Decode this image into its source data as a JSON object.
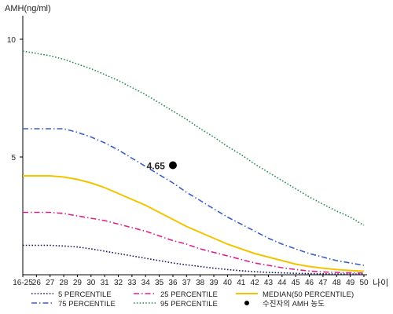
{
  "chart_data": {
    "type": "line",
    "ylabel": "AMH(ng/ml)",
    "xlabel": "나이",
    "x_ticks": [
      "16-25",
      "26",
      "27",
      "28",
      "29",
      "30",
      "31",
      "32",
      "33",
      "34",
      "35",
      "36",
      "37",
      "38",
      "39",
      "40",
      "41",
      "42",
      "43",
      "44",
      "45",
      "46",
      "47",
      "48",
      "49",
      "50"
    ],
    "y_ticks": [
      5,
      10
    ],
    "ylim": [
      0,
      11
    ],
    "grid": false,
    "series": [
      {
        "name": "95 PERCENTILE",
        "color": "#2e8b57",
        "style": "dotted",
        "values": [
          9.5,
          9.4,
          9.3,
          9.15,
          8.95,
          8.75,
          8.5,
          8.25,
          7.95,
          7.65,
          7.3,
          6.95,
          6.6,
          6.2,
          5.85,
          5.45,
          5.1,
          4.7,
          4.35,
          4.0,
          3.65,
          3.3,
          3.0,
          2.7,
          2.45,
          2.1
        ]
      },
      {
        "name": "75 PERCENTILE",
        "color": "#3a5fcd",
        "style": "dashdot",
        "values": [
          6.2,
          6.2,
          6.2,
          6.2,
          6.05,
          5.85,
          5.6,
          5.3,
          4.95,
          4.6,
          4.25,
          3.9,
          3.5,
          3.15,
          2.8,
          2.45,
          2.15,
          1.85,
          1.55,
          1.3,
          1.1,
          0.9,
          0.75,
          0.6,
          0.5,
          0.4
        ]
      },
      {
        "name": "MEDIAN(50 PERCENTILE)",
        "color": "#f2c400",
        "style": "solid",
        "values": [
          4.2,
          4.2,
          4.2,
          4.15,
          4.05,
          3.9,
          3.7,
          3.45,
          3.2,
          2.95,
          2.65,
          2.35,
          2.05,
          1.8,
          1.55,
          1.3,
          1.1,
          0.9,
          0.75,
          0.6,
          0.45,
          0.35,
          0.28,
          0.22,
          0.18,
          0.15
        ]
      },
      {
        "name": "25 PERCENTILE",
        "color": "#e0218a",
        "style": "dashdot",
        "values": [
          2.65,
          2.65,
          2.65,
          2.6,
          2.5,
          2.4,
          2.3,
          2.15,
          2.0,
          1.85,
          1.65,
          1.45,
          1.3,
          1.1,
          0.95,
          0.8,
          0.65,
          0.5,
          0.4,
          0.3,
          0.22,
          0.16,
          0.12,
          0.1,
          0.08,
          0.07
        ]
      },
      {
        "name": "5 PERCENTILE",
        "color": "#1a1a60",
        "style": "dotted",
        "values": [
          1.25,
          1.25,
          1.25,
          1.22,
          1.18,
          1.1,
          1.0,
          0.9,
          0.8,
          0.7,
          0.6,
          0.5,
          0.42,
          0.35,
          0.28,
          0.22,
          0.17,
          0.13,
          0.1,
          0.08,
          0.06,
          0.05,
          0.04,
          0.03,
          0.03,
          0.02
        ]
      }
    ],
    "annotation": {
      "label": "4.65",
      "x": "36",
      "y": 4.65,
      "legend_label": "수진자의 AMH 농도",
      "color": "#000000"
    },
    "legend": {
      "placement": "bottom",
      "entries": [
        {
          "label": "5 PERCENTILE",
          "color": "#1a1a60",
          "style": "dotted"
        },
        {
          "label": "25 PERCENTILE",
          "color": "#e0218a",
          "style": "dashdot"
        },
        {
          "label": "MEDIAN(50 PERCENTILE)",
          "color": "#f2c400",
          "style": "solid"
        },
        {
          "label": "75 PERCENTILE",
          "color": "#3a5fcd",
          "style": "dashdot"
        },
        {
          "label": "95 PERCENTILE",
          "color": "#2e8b57",
          "style": "dotted"
        },
        {
          "label": "수진자의 AMH 농도",
          "color": "#000000",
          "style": "dot"
        }
      ]
    }
  }
}
